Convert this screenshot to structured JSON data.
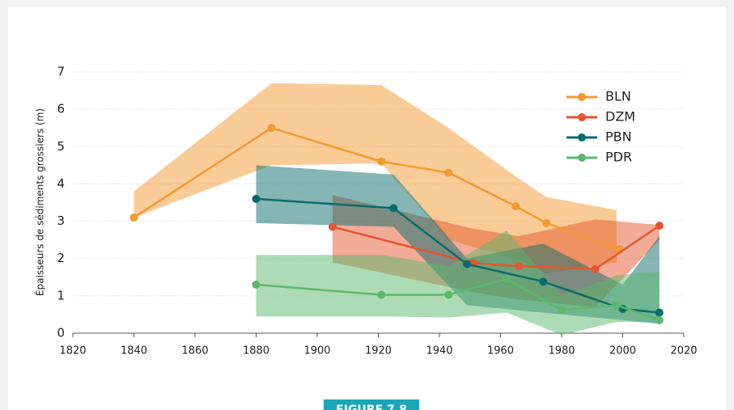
{
  "chart_data": {
    "type": "line",
    "y_label": "Épaisseurs de sédiments grossiers (m)",
    "figure_label": "FIGURE 7.8",
    "xlim": [
      1820,
      2020
    ],
    "xticks": [
      1820,
      1840,
      1860,
      1880,
      1900,
      1920,
      1940,
      1960,
      1980,
      2000,
      2020
    ],
    "ylim": [
      0,
      7
    ],
    "yticks": [
      0,
      1,
      2,
      3,
      4,
      5,
      6,
      7
    ],
    "grid": true,
    "legend": "upper right",
    "series": [
      {
        "name": "BLN",
        "color": "#f39a30",
        "x": [
          1840,
          1885,
          1921,
          1943,
          1965,
          1975,
          1999
        ],
        "values": [
          3.1,
          5.5,
          4.6,
          4.3,
          3.4,
          2.95,
          2.25
        ],
        "band_x": [
          1840,
          1885,
          1921,
          1943,
          1965,
          1975,
          1998
        ],
        "band_upper": [
          3.8,
          6.7,
          6.65,
          5.5,
          4.2,
          3.65,
          3.3
        ],
        "band_lower": [
          3.1,
          4.5,
          4.55,
          2.5,
          2.0,
          1.6,
          1.9
        ]
      },
      {
        "name": "DZM",
        "color": "#e4572e",
        "x": [
          1905,
          1951,
          1966,
          1991,
          2012
        ],
        "values": [
          2.85,
          1.88,
          1.8,
          1.72,
          2.88
        ],
        "band_x": [
          1905,
          1951,
          1966,
          1991,
          2012
        ],
        "band_upper": [
          3.7,
          2.8,
          2.6,
          3.05,
          2.9
        ],
        "band_lower": [
          1.9,
          1.1,
          0.9,
          0.7,
          2.5
        ]
      },
      {
        "name": "PBN",
        "color": "#0b6b6b",
        "x": [
          1880,
          1925,
          1949,
          1974,
          2000,
          2012
        ],
        "values": [
          3.6,
          3.35,
          1.85,
          1.38,
          0.65,
          0.55
        ],
        "band_x": [
          1880,
          1925,
          1949,
          1974,
          2000,
          2012
        ],
        "band_upper": [
          4.5,
          4.25,
          2.0,
          2.4,
          1.3,
          2.6
        ],
        "band_lower": [
          2.95,
          2.85,
          0.75,
          0.55,
          0.35,
          0.25
        ]
      },
      {
        "name": "PDR",
        "color": "#5cb86c",
        "x": [
          1880,
          1921,
          1943,
          1962,
          1980,
          1998,
          2012
        ],
        "values": [
          1.3,
          1.03,
          1.03,
          1.45,
          0.62,
          0.75,
          0.35
        ],
        "band_x": [
          1880,
          1921,
          1943,
          1962,
          1980,
          1998,
          2012
        ],
        "band_upper": [
          2.1,
          2.1,
          1.8,
          2.75,
          1.0,
          1.55,
          1.65
        ],
        "band_lower": [
          0.45,
          0.45,
          0.42,
          0.55,
          -0.05,
          0.3,
          0.3
        ]
      }
    ]
  }
}
